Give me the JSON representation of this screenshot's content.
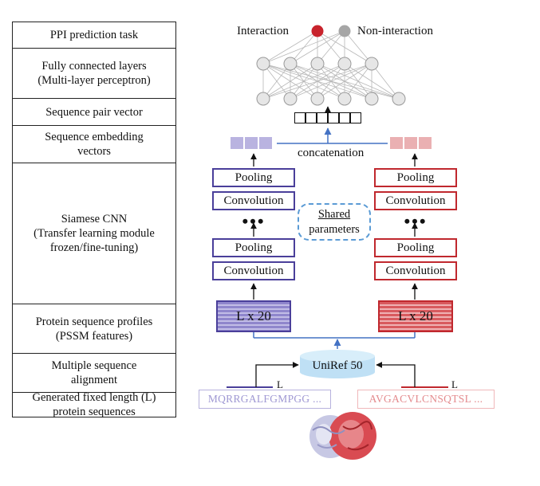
{
  "stages": [
    "PPI prediction task",
    "Fully connected layers\n(Multi-layer perceptron)",
    "Sequence pair vector",
    "Sequence embedding\nvectors",
    "Siamese CNN\n(Transfer learning module\nfrozen/fine-tuning)",
    "Protein sequence profiles\n(PSSM features)",
    "Multiple sequence\nalignment",
    "Generated fixed length (L)\nprotein sequences"
  ],
  "output": {
    "interaction_label": "Interaction",
    "non_interaction_label": "Non-interaction",
    "interaction_color": "#c8232c",
    "non_interaction_color": "#a6a6a6"
  },
  "concat_label": "concatenation",
  "cnn": {
    "pooling_label": "Pooling",
    "convolution_label": "Convolution",
    "ellipsis": "•••",
    "shared_line1": "Shared",
    "shared_line2": "parameters"
  },
  "pssm_label": "L x 20",
  "database_label": "UniRef 50",
  "length_label": "L",
  "sequences": {
    "left": "MQRRGALFGMPGG ...",
    "right": "AVGACVLCNSQTSL ..."
  },
  "colors": {
    "left_accent": "#4a3f9a",
    "right_accent": "#c0282e",
    "arrow_blue": "#4472c4"
  }
}
